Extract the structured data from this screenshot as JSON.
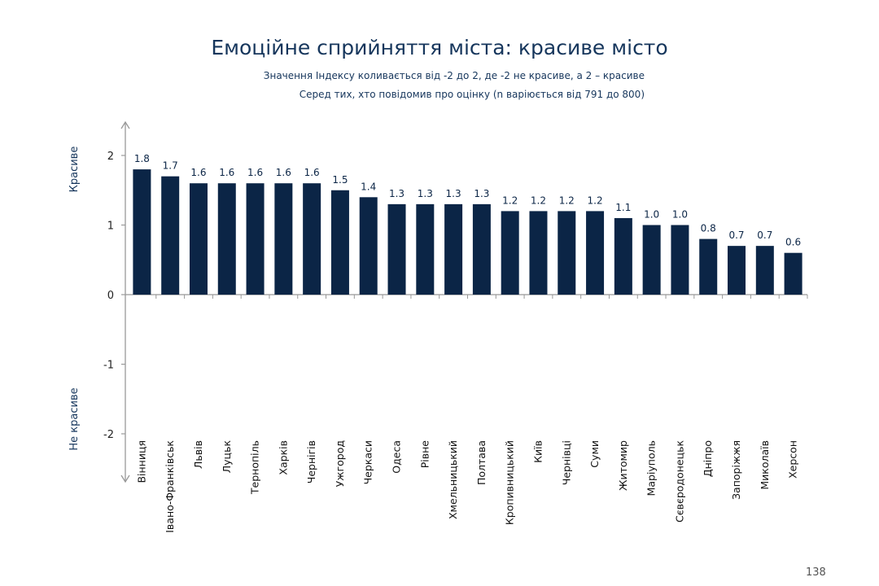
{
  "title": "Емоційне сприйняття міста: красиве місто",
  "subtitle_1": "Значення Індексу коливається від -2 до 2, де -2 не красиве, а 2 – красиве",
  "subtitle_2": "Серед тих, хто повідомив про оцінку (n варіюється від 791 до 800)",
  "page_number": "138",
  "colors": {
    "bar": "#0b2546",
    "axis": "#999999"
  },
  "chart_data": {
    "type": "bar",
    "title": "Емоційне сприйняття міста: красиве місто",
    "ylim": [
      -2,
      2
    ],
    "yticks": [
      "2",
      "1",
      "0",
      "-1",
      "-2"
    ],
    "ytick_values": [
      2,
      1,
      0,
      -1,
      -2
    ],
    "y_top_label": "Красиве",
    "y_bottom_label": "Не красиве",
    "grid": false,
    "categories": [
      "Вінниця",
      "Івано-Франківськ",
      "Львів",
      "Луцьк",
      "Тернопіль",
      "Харків",
      "Чернігів",
      "Ужгород",
      "Черкаси",
      "Одеса",
      "Рівне",
      "Хмельницький",
      "Полтава",
      "Кропивницький",
      "Київ",
      "Чернівці",
      "Суми",
      "Житомир",
      "Маріуполь",
      "Сєвєродонецьк",
      "Дніпро",
      "Запоріжжя",
      "Миколаїв",
      "Херсон"
    ],
    "values": [
      1.8,
      1.7,
      1.6,
      1.6,
      1.6,
      1.6,
      1.6,
      1.5,
      1.4,
      1.3,
      1.3,
      1.3,
      1.3,
      1.2,
      1.2,
      1.2,
      1.2,
      1.1,
      1.0,
      1.0,
      0.8,
      0.7,
      0.7,
      0.6
    ],
    "value_labels": [
      "1.8",
      "1.7",
      "1.6",
      "1.6",
      "1.6",
      "1.6",
      "1.6",
      "1.5",
      "1.4",
      "1.3",
      "1.3",
      "1.3",
      "1.3",
      "1.2",
      "1.2",
      "1.2",
      "1.2",
      "1.1",
      "1.0",
      "1.0",
      "0.8",
      "0.7",
      "0.7",
      "0.6"
    ]
  }
}
